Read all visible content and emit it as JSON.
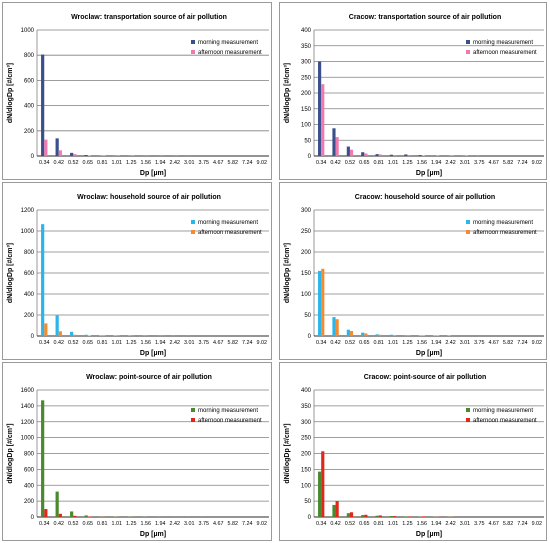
{
  "chart_data": [
    {
      "type": "bar",
      "title": "Wroclaw: transportation source of air pollution",
      "xlabel": "Dp [µm]",
      "ylabel": "dN/dlogDp [#/cm³]",
      "ylim": [
        0,
        1000
      ],
      "yticks": [
        0,
        200,
        400,
        600,
        800,
        1000
      ],
      "grid": true,
      "legend_position": "top-right",
      "categories": [
        "0.34",
        "0.42",
        "0.52",
        "0.65",
        "0.81",
        "1.01",
        "1.25",
        "1.56",
        "1.94",
        "2.42",
        "3.01",
        "3.75",
        "4.67",
        "5.82",
        "7.24",
        "9.02"
      ],
      "series": [
        {
          "name": "morning measurement",
          "color": "#3c4f8d",
          "values": [
            805,
            140,
            25,
            8,
            4,
            3,
            2,
            2,
            1,
            1,
            1,
            0,
            0,
            0,
            0,
            0
          ]
        },
        {
          "name": "afternoon measurement",
          "color": "#f07ab0",
          "values": [
            130,
            45,
            15,
            5,
            3,
            2,
            2,
            1,
            1,
            1,
            0,
            0,
            0,
            0,
            0,
            0
          ]
        }
      ]
    },
    {
      "type": "bar",
      "title": "Cracow: transportation source of air pollution",
      "xlabel": "Dp [µm]",
      "ylabel": "dN/dlogDp [#/cm³]",
      "ylim": [
        0,
        400
      ],
      "yticks": [
        0,
        50,
        100,
        150,
        200,
        250,
        300,
        350,
        400
      ],
      "grid": true,
      "legend_position": "top-right",
      "categories": [
        "0.34",
        "0.42",
        "0.52",
        "0.65",
        "0.81",
        "1.01",
        "1.25",
        "1.56",
        "1.94",
        "2.42",
        "3.01",
        "3.75",
        "4.67",
        "5.82",
        "7.24",
        "9.02"
      ],
      "series": [
        {
          "name": "morning measurement",
          "color": "#3c4f8d",
          "values": [
            300,
            88,
            30,
            12,
            6,
            4,
            5,
            3,
            2,
            1,
            1,
            1,
            0,
            0,
            0,
            0
          ]
        },
        {
          "name": "afternoon measurement",
          "color": "#f07ab0",
          "values": [
            228,
            60,
            20,
            8,
            5,
            3,
            3,
            2,
            1,
            1,
            1,
            0,
            0,
            0,
            0,
            0
          ]
        }
      ]
    },
    {
      "type": "bar",
      "title": "Wroclaw: household source of air pollution",
      "xlabel": "Dp [µm]",
      "ylabel": "dN/dlogDp [#/cm³]",
      "ylim": [
        0,
        1200
      ],
      "yticks": [
        0,
        200,
        400,
        600,
        800,
        1000,
        1200
      ],
      "grid": true,
      "legend_position": "top-right",
      "categories": [
        "0.34",
        "0.42",
        "0.52",
        "0.65",
        "0.81",
        "1.01",
        "1.25",
        "1.56",
        "1.94",
        "2.42",
        "3.01",
        "3.75",
        "4.67",
        "5.82",
        "7.24",
        "9.02"
      ],
      "series": [
        {
          "name": "morning measurement",
          "color": "#29b6ec",
          "values": [
            1065,
            195,
            40,
            12,
            6,
            4,
            3,
            2,
            1,
            1,
            1,
            0,
            0,
            0,
            0,
            0
          ]
        },
        {
          "name": "afternoon measurement",
          "color": "#f58a2e",
          "values": [
            120,
            45,
            12,
            5,
            3,
            2,
            1,
            1,
            1,
            0,
            0,
            0,
            0,
            0,
            0,
            0
          ]
        }
      ]
    },
    {
      "type": "bar",
      "title": "Cracow: household source of air pollution",
      "xlabel": "Dp [µm]",
      "ylabel": "dN/dlogDp [#/cm³]",
      "ylim": [
        0,
        300
      ],
      "yticks": [
        0,
        50,
        100,
        150,
        200,
        250,
        300
      ],
      "grid": true,
      "legend_position": "top-right",
      "categories": [
        "0.34",
        "0.42",
        "0.52",
        "0.65",
        "0.81",
        "1.01",
        "1.25",
        "1.56",
        "1.94",
        "2.42",
        "3.01",
        "3.75",
        "4.67",
        "5.82",
        "7.24",
        "9.02"
      ],
      "series": [
        {
          "name": "morning measurement",
          "color": "#29b6ec",
          "values": [
            155,
            45,
            15,
            8,
            4,
            3,
            2,
            1,
            1,
            1,
            0,
            0,
            0,
            0,
            0,
            0
          ]
        },
        {
          "name": "afternoon measurement",
          "color": "#f58a2e",
          "values": [
            160,
            40,
            12,
            6,
            3,
            2,
            2,
            1,
            1,
            0,
            0,
            0,
            0,
            0,
            0,
            0
          ]
        }
      ]
    },
    {
      "type": "bar",
      "title": "Wroclaw: point-source of air pollution",
      "xlabel": "Dp [µm]",
      "ylabel": "dN/dlogDp [#/cm³]",
      "ylim": [
        0,
        1600
      ],
      "yticks": [
        0,
        200,
        400,
        600,
        800,
        1000,
        1200,
        1400,
        1600
      ],
      "grid": true,
      "legend_position": "right",
      "categories": [
        "0.34",
        "0.42",
        "0.52",
        "0.65",
        "0.81",
        "1.01",
        "1.25",
        "1.56",
        "1.94",
        "2.42",
        "3.01",
        "3.75",
        "4.67",
        "5.82",
        "7.24",
        "9.02"
      ],
      "series": [
        {
          "name": "morning measurement",
          "color": "#4a8a2f",
          "values": [
            1470,
            320,
            70,
            20,
            8,
            5,
            4,
            3,
            2,
            1,
            1,
            1,
            0,
            0,
            0,
            0
          ]
        },
        {
          "name": "afternoon measurement",
          "color": "#e1261c",
          "values": [
            100,
            40,
            15,
            6,
            3,
            2,
            2,
            1,
            1,
            1,
            0,
            0,
            0,
            0,
            0,
            0
          ]
        }
      ]
    },
    {
      "type": "bar",
      "title": "Cracow: point-source of air pollution",
      "xlabel": "Dp [µm]",
      "ylabel": "dN/dlogDp [#/cm³]",
      "ylim": [
        0,
        400
      ],
      "yticks": [
        0,
        50,
        100,
        150,
        200,
        250,
        300,
        350,
        400
      ],
      "grid": true,
      "legend_position": "right",
      "categories": [
        "0.34",
        "0.42",
        "0.52",
        "0.65",
        "0.81",
        "1.01",
        "1.25",
        "1.56",
        "1.94",
        "2.42",
        "3.01",
        "3.75",
        "4.67",
        "5.82",
        "7.24",
        "9.02"
      ],
      "series": [
        {
          "name": "morning measurement",
          "color": "#4a8a2f",
          "values": [
            143,
            38,
            12,
            6,
            4,
            3,
            2,
            1,
            1,
            1,
            0,
            0,
            0,
            0,
            0,
            0
          ]
        },
        {
          "name": "afternoon measurement",
          "color": "#e1261c",
          "values": [
            207,
            50,
            15,
            7,
            5,
            3,
            2,
            2,
            1,
            1,
            0,
            0,
            0,
            0,
            0,
            0
          ]
        }
      ]
    }
  ]
}
